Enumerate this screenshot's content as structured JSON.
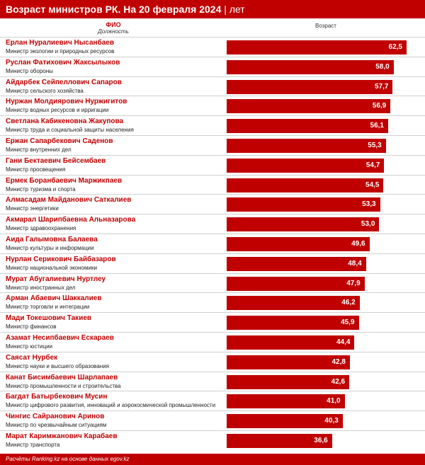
{
  "header": {
    "title": "Возраст министров РК. На 20 февраля 2024",
    "unit": "лет"
  },
  "columns": {
    "name": "ФИО",
    "post": "Должность",
    "value": "Возраст"
  },
  "colors": {
    "accent": "#c00000"
  },
  "chart_data": {
    "type": "bar",
    "orientation": "horizontal",
    "title": "Возраст министров РК. На 20 февраля 2024",
    "unit": "лет",
    "xlim": [
      0,
      62.5
    ],
    "rows": [
      {
        "name": "Ерлан Нуралиевич Нысанбаев",
        "post": "Министр экологии и природных ресурсов",
        "value": 62.5,
        "label": "62,5"
      },
      {
        "name": "Руслан Фатихович Жаксылыков",
        "post": "Министр обороны",
        "value": 58.0,
        "label": "58,0"
      },
      {
        "name": "Айдарбек Сейпеллович Сапаров",
        "post": "Министр сельского хозяйства",
        "value": 57.7,
        "label": "57,7"
      },
      {
        "name": "Нуржан Молдиярович Нуржигитов",
        "post": "Министр водных ресурсов и ирригации",
        "value": 56.9,
        "label": "56,9"
      },
      {
        "name": "Светлана Кабикеновна Жакупова",
        "post": "Министр труда и социальной защиты населения",
        "value": 56.1,
        "label": "56,1"
      },
      {
        "name": "Ержан Сапарбекович Саденов",
        "post": "Министр внутренних дел",
        "value": 55.3,
        "label": "55,3"
      },
      {
        "name": "Гани Бектаевич Бейсембаев",
        "post": "Министр просвещения",
        "value": 54.7,
        "label": "54,7"
      },
      {
        "name": "Ермек Боранбаевич Маржикпаев",
        "post": "Министр туризма и спорта",
        "value": 54.5,
        "label": "54,5"
      },
      {
        "name": "Алмасадам Майданович Саткалиев",
        "post": "Министр энергетики",
        "value": 53.3,
        "label": "53,3"
      },
      {
        "name": "Акмарал Шарипбаевна Альназарова",
        "post": "Министр здравоохранения",
        "value": 53.0,
        "label": "53,0"
      },
      {
        "name": "Аида Галымовна Балаева",
        "post": "Министр культуры и информации",
        "value": 49.6,
        "label": "49,6"
      },
      {
        "name": "Нурлан Серикович Байбазаров",
        "post": "Министр национальной экономики",
        "value": 48.4,
        "label": "48,4"
      },
      {
        "name": "Мурат Абугалиевич Нуртлеу",
        "post": "Министр иностранных дел",
        "value": 47.9,
        "label": "47,9"
      },
      {
        "name": "Арман Абаевич Шаккалиев",
        "post": "Министр торговли и интеграции",
        "value": 46.2,
        "label": "46,2"
      },
      {
        "name": "Мади Токешович Такиев",
        "post": "Министр финансов",
        "value": 45.9,
        "label": "45,9"
      },
      {
        "name": "Азамат Несипбаевич Ескараев",
        "post": "Министр юстиции",
        "value": 44.4,
        "label": "44,4"
      },
      {
        "name": "Саясат Нурбек",
        "post": "Министр науки и высшего образования",
        "value": 42.8,
        "label": "42,8"
      },
      {
        "name": "Канат Бисимбаевич Шарлапаев",
        "post": "Министр промышленности и строительства",
        "value": 42.6,
        "label": "42,6"
      },
      {
        "name": "Багдат Батырбекович Мусин",
        "post": "Министр цифрового развития, инноваций и аэрокосмической промышленности",
        "value": 41.0,
        "label": "41,0"
      },
      {
        "name": "Чингис Сайранович Аринов",
        "post": "Министр по чрезвычайным ситуациям",
        "value": 40.3,
        "label": "40,3"
      },
      {
        "name": "Марат Каримжанович Карабаев",
        "post": "Министр транспорта",
        "value": 36.6,
        "label": "36,6"
      }
    ]
  },
  "footer": {
    "text": "Расчёты Ranking.kz на основе данных egov.kz"
  }
}
